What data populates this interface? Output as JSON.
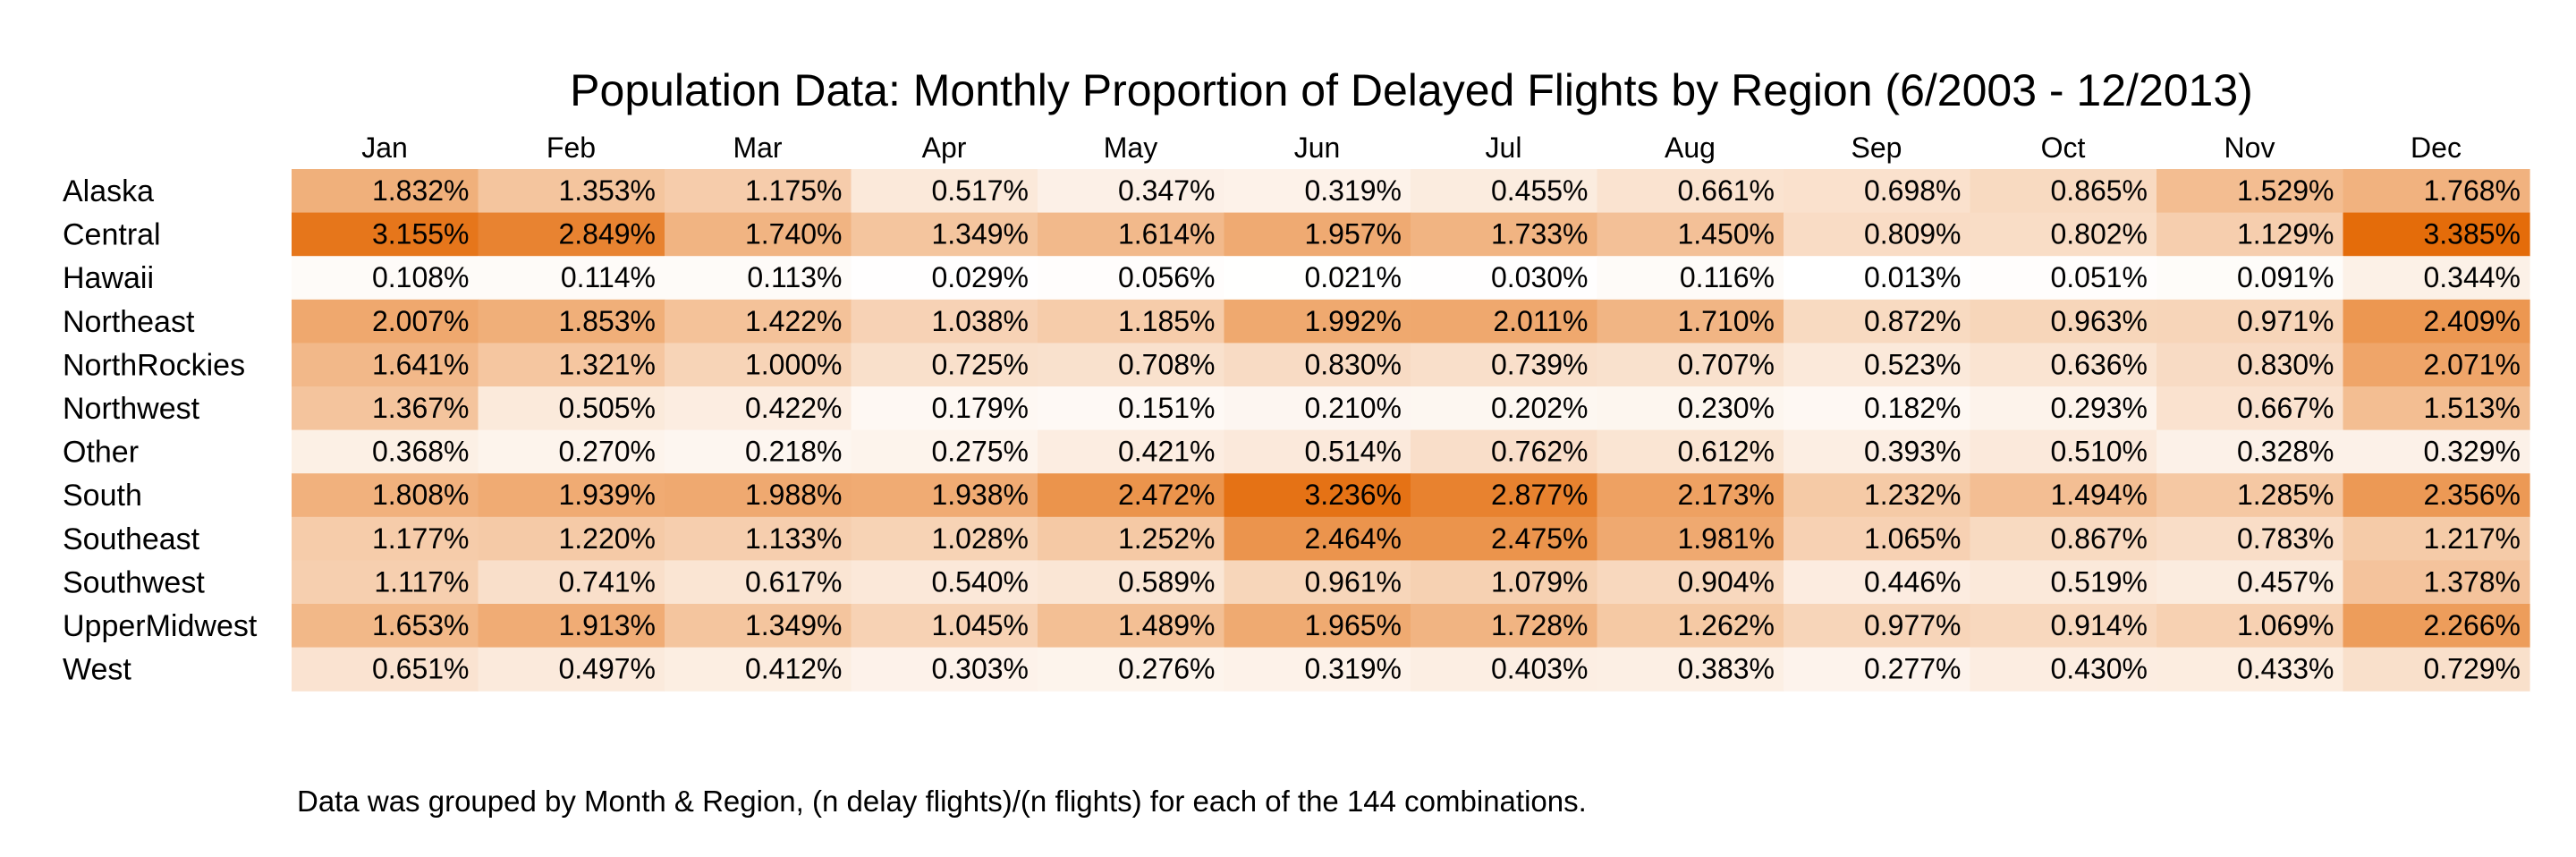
{
  "chart_data": {
    "type": "heatmap",
    "title": "Population Data: Monthly Proportion of Delayed Flights by Region (6/2003 - 12/2013)",
    "x": [
      "Jan",
      "Feb",
      "Mar",
      "Apr",
      "May",
      "Jun",
      "Jul",
      "Aug",
      "Sep",
      "Oct",
      "Nov",
      "Dec"
    ],
    "y": [
      "Alaska",
      "Central",
      "Hawaii",
      "Northeast",
      "NorthRockies",
      "Northwest",
      "Other",
      "South",
      "Southeast",
      "Southwest",
      "UpperMidwest",
      "West"
    ],
    "unit": "%",
    "values": [
      [
        1.832,
        1.353,
        1.175,
        0.517,
        0.347,
        0.319,
        0.455,
        0.661,
        0.698,
        0.865,
        1.529,
        1.768
      ],
      [
        3.155,
        2.849,
        1.74,
        1.349,
        1.614,
        1.957,
        1.733,
        1.45,
        0.809,
        0.802,
        1.129,
        3.385
      ],
      [
        0.108,
        0.114,
        0.113,
        0.029,
        0.056,
        0.021,
        0.03,
        0.116,
        0.013,
        0.051,
        0.091,
        0.344
      ],
      [
        2.007,
        1.853,
        1.422,
        1.038,
        1.185,
        1.992,
        2.011,
        1.71,
        0.872,
        0.963,
        0.971,
        2.409
      ],
      [
        1.641,
        1.321,
        1.0,
        0.725,
        0.708,
        0.83,
        0.739,
        0.707,
        0.523,
        0.636,
        0.83,
        2.071
      ],
      [
        1.367,
        0.505,
        0.422,
        0.179,
        0.151,
        0.21,
        0.202,
        0.23,
        0.182,
        0.293,
        0.667,
        1.513
      ],
      [
        0.368,
        0.27,
        0.218,
        0.275,
        0.421,
        0.514,
        0.762,
        0.612,
        0.393,
        0.51,
        0.328,
        0.329
      ],
      [
        1.808,
        1.939,
        1.988,
        1.938,
        2.472,
        3.236,
        2.877,
        2.173,
        1.232,
        1.494,
        1.285,
        2.356
      ],
      [
        1.177,
        1.22,
        1.133,
        1.028,
        1.252,
        2.464,
        2.475,
        1.981,
        1.065,
        0.867,
        0.783,
        1.217
      ],
      [
        1.117,
        0.741,
        0.617,
        0.54,
        0.589,
        0.961,
        1.079,
        0.904,
        0.446,
        0.519,
        0.457,
        1.378
      ],
      [
        1.653,
        1.913,
        1.349,
        1.045,
        1.489,
        1.965,
        1.728,
        1.262,
        0.977,
        0.914,
        1.069,
        2.266
      ],
      [
        0.651,
        0.497,
        0.412,
        0.303,
        0.276,
        0.319,
        0.403,
        0.383,
        0.277,
        0.43,
        0.433,
        0.729
      ]
    ],
    "color_scale": {
      "low": "#ffffff",
      "high": "#e46c0a"
    },
    "legend": "none",
    "grid": false,
    "footnote": "Data was grouped by Month & Region, (n delay flights)/(n flights) for each of the 144 combinations."
  }
}
